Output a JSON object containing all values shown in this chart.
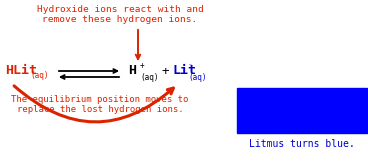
{
  "title_line1": "Hydroxide ions react with and",
  "title_line2": "remove these hydrogen ions.",
  "title_color": "#dd2200",
  "eq_left_main": "HLit",
  "eq_left_sub": "(aq)",
  "eq_left_color": "#dd2200",
  "eq_right1_main": "H",
  "eq_right1_sup": "+",
  "eq_right1_sub": "(aq)",
  "eq_right1_color": "#000000",
  "eq_plus": "+",
  "eq_right2_main": "Lit",
  "eq_right2_sup": "⁻",
  "eq_right2_sub": "(aq)",
  "eq_right2_color": "#0000cc",
  "bottom_line1": "The equilibrium position moves to",
  "bottom_line2": "replace the lost hydrogen ions.",
  "bottom_color": "#dd2200",
  "box_color": "#0000ff",
  "box_label": "Litmus turns blue.",
  "box_label_color": "#0000cc",
  "bg_color": "#ffffff",
  "arrow_color": "#dd2200",
  "down_arrow_color": "#dd2200"
}
